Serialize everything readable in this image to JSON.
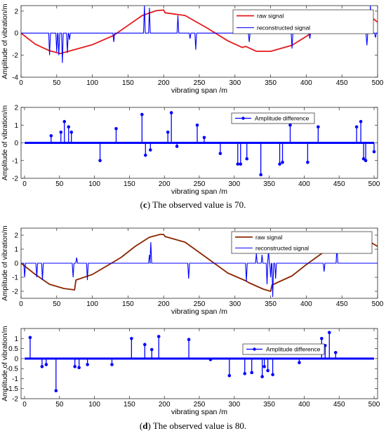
{
  "captions": [
    {
      "label": "c",
      "text": " The observed value is 70."
    },
    {
      "label": "d",
      "text": " The observed value is 80."
    }
  ],
  "colors": {
    "blue": "#0000ff",
    "red": "#e41a1c",
    "brown": "#8b2500",
    "axes": "#262626"
  },
  "chart_data": [
    {
      "type": "line",
      "xlabel": "vibrating span /m",
      "ylabel": "Amplitude of vibration/m",
      "xlim": [
        0,
        500
      ],
      "ylim": [
        -4,
        2.5
      ],
      "xticks": [
        0,
        50,
        100,
        150,
        200,
        250,
        300,
        350,
        400,
        450,
        500
      ],
      "yticks": [
        -4,
        -2,
        0,
        2
      ],
      "legend_position": "top-right",
      "series": [
        {
          "name": "raw signal",
          "color": "#e41a1c",
          "kind": "curve",
          "points": [
            [
              0,
              0
            ],
            [
              20,
              -1.0
            ],
            [
              40,
              -1.6
            ],
            [
              55,
              -1.85
            ],
            [
              75,
              -1.5
            ],
            [
              100,
              -1.05
            ],
            [
              130,
              -0.2
            ],
            [
              150,
              0.7
            ],
            [
              170,
              1.6
            ],
            [
              190,
              2.05
            ],
            [
              200,
              2.1
            ],
            [
              202,
              1.85
            ],
            [
              230,
              1.6
            ],
            [
              260,
              0.5
            ],
            [
              290,
              -0.7
            ],
            [
              310,
              -1.3
            ],
            [
              315,
              -1.2
            ],
            [
              330,
              -1.65
            ],
            [
              350,
              -1.65
            ],
            [
              380,
              -1.1
            ],
            [
              400,
              -0.3
            ],
            [
              420,
              0.6
            ],
            [
              450,
              1.55
            ],
            [
              470,
              1.75
            ],
            [
              490,
              1.5
            ],
            [
              500,
              1.0
            ]
          ]
        },
        {
          "name": "reconstructed signal",
          "color": "#0000ff",
          "kind": "spikes",
          "spikes": [
            [
              40,
              -2.0
            ],
            [
              50,
              -1.7
            ],
            [
              53,
              -2.0
            ],
            [
              58,
              -2.7
            ],
            [
              65,
              -1.8
            ],
            [
              68,
              -0.6
            ],
            [
              130,
              -0.8
            ],
            [
              173,
              2.5
            ],
            [
              180,
              2.3
            ],
            [
              220,
              1.6
            ],
            [
              237,
              -0.5
            ],
            [
              245,
              -1.5
            ],
            [
              320,
              -0.8
            ],
            [
              380,
              -1.4
            ],
            [
              405,
              -0.5
            ],
            [
              485,
              -1.1
            ],
            [
              488,
              0.5
            ],
            [
              490,
              2.5
            ],
            [
              497,
              -0.4
            ]
          ]
        }
      ]
    },
    {
      "type": "stem",
      "xlabel": "vibrating span /m",
      "ylabel": "Amplitude of vibration/m",
      "xlim": [
        -5,
        505
      ],
      "ylim": [
        -2,
        2
      ],
      "xticks": [
        0,
        50,
        100,
        150,
        200,
        250,
        300,
        350,
        400,
        450,
        500
      ],
      "yticks": [
        -2,
        -1,
        0,
        1,
        2
      ],
      "legend_position": "top-right",
      "series": [
        {
          "name": "Amplitude difference",
          "color": "#0000ff",
          "x": [
            38,
            52,
            57,
            63,
            67,
            108,
            131,
            168,
            173,
            180,
            205,
            210,
            218,
            247,
            257,
            280,
            305,
            309,
            318,
            338,
            365,
            369,
            380,
            405,
            420,
            475,
            481,
            485,
            488,
            500
          ],
          "values": [
            0.4,
            0.6,
            1.2,
            0.9,
            0.6,
            -1.0,
            0.8,
            1.6,
            -0.7,
            -0.4,
            0.6,
            1.7,
            -0.2,
            1.0,
            0.3,
            -0.6,
            -1.2,
            -1.2,
            -0.9,
            -1.8,
            -1.2,
            -1.1,
            1.0,
            -1.1,
            0.9,
            0.9,
            1.2,
            -0.9,
            -1.0,
            -0.5
          ]
        }
      ]
    },
    {
      "type": "line",
      "xlabel": "vibrating span /m",
      "ylabel": "Amplitude of vibration/m",
      "xlim": [
        0,
        500
      ],
      "ylim": [
        -2.5,
        2.5
      ],
      "xticks": [
        0,
        50,
        100,
        150,
        200,
        250,
        300,
        350,
        400,
        450,
        500
      ],
      "yticks": [
        -2,
        -1,
        0,
        1,
        2
      ],
      "legend_position": "top-right",
      "series": [
        {
          "name": "raw signal",
          "color": "#8b2500",
          "kind": "curve",
          "points": [
            [
              0,
              0
            ],
            [
              20,
              -0.8
            ],
            [
              40,
              -1.5
            ],
            [
              60,
              -1.8
            ],
            [
              75,
              -1.9
            ],
            [
              77,
              -1.2
            ],
            [
              100,
              -0.8
            ],
            [
              130,
              0.1
            ],
            [
              140,
              0.4
            ],
            [
              160,
              1.2
            ],
            [
              180,
              1.85
            ],
            [
              195,
              2.05
            ],
            [
              200,
              2.05
            ],
            [
              202,
              1.9
            ],
            [
              230,
              1.5
            ],
            [
              260,
              0.4
            ],
            [
              290,
              -0.7
            ],
            [
              315,
              -1.25
            ],
            [
              320,
              -1.4
            ],
            [
              340,
              -1.85
            ],
            [
              350,
              -2.0
            ],
            [
              352,
              -1.55
            ],
            [
              380,
              -0.9
            ],
            [
              400,
              -0.1
            ],
            [
              430,
              1.0
            ],
            [
              460,
              1.65
            ],
            [
              470,
              1.75
            ],
            [
              490,
              1.5
            ],
            [
              500,
              1.2
            ]
          ]
        },
        {
          "name": "reconstructed signal",
          "color": "#0000ff",
          "kind": "spikes",
          "spikes": [
            [
              5,
              -1.0
            ],
            [
              22,
              -1.0
            ],
            [
              30,
              -1.2
            ],
            [
              73,
              -1.0
            ],
            [
              78,
              0.4
            ],
            [
              93,
              -1.2
            ],
            [
              180,
              0.6
            ],
            [
              182,
              1.5
            ],
            [
              235,
              -1.1
            ],
            [
              316,
              -1.3
            ],
            [
              330,
              0.7
            ],
            [
              338,
              0.6
            ],
            [
              345,
              -1.5
            ],
            [
              347,
              0.9
            ],
            [
              350,
              -1.0
            ],
            [
              353,
              -2.4
            ],
            [
              357,
              -1.1
            ],
            [
              425,
              -0.6
            ],
            [
              443,
              1.3
            ]
          ]
        }
      ]
    },
    {
      "type": "stem",
      "xlabel": "vibrating span /m",
      "ylabel": "Amplitude of vibration/m",
      "xlim": [
        -5,
        505
      ],
      "ylim": [
        -2,
        1.5
      ],
      "xticks": [
        0,
        50,
        100,
        150,
        200,
        250,
        300,
        350,
        400,
        450,
        500
      ],
      "yticks": [
        -2,
        -1.5,
        -1,
        -0.5,
        0,
        0.5,
        1
      ],
      "legend_position": "top-right",
      "series": [
        {
          "name": "Amplitude difference",
          "color": "#0000ff",
          "x": [
            8,
            25,
            31,
            45,
            72,
            78,
            90,
            125,
            153,
            172,
            182,
            192,
            235,
            266,
            293,
            315,
            325,
            340,
            343,
            348,
            355,
            393,
            425,
            430,
            436,
            445
          ],
          "values": [
            1.05,
            -0.4,
            -0.3,
            -1.6,
            -0.4,
            -0.45,
            -0.3,
            -0.3,
            1.0,
            0.7,
            0.45,
            1.1,
            0.95,
            -0.05,
            -0.85,
            -0.75,
            -0.7,
            -0.9,
            -0.4,
            -0.6,
            -0.8,
            -0.2,
            1.0,
            0.65,
            1.3,
            0.3
          ]
        }
      ]
    }
  ]
}
